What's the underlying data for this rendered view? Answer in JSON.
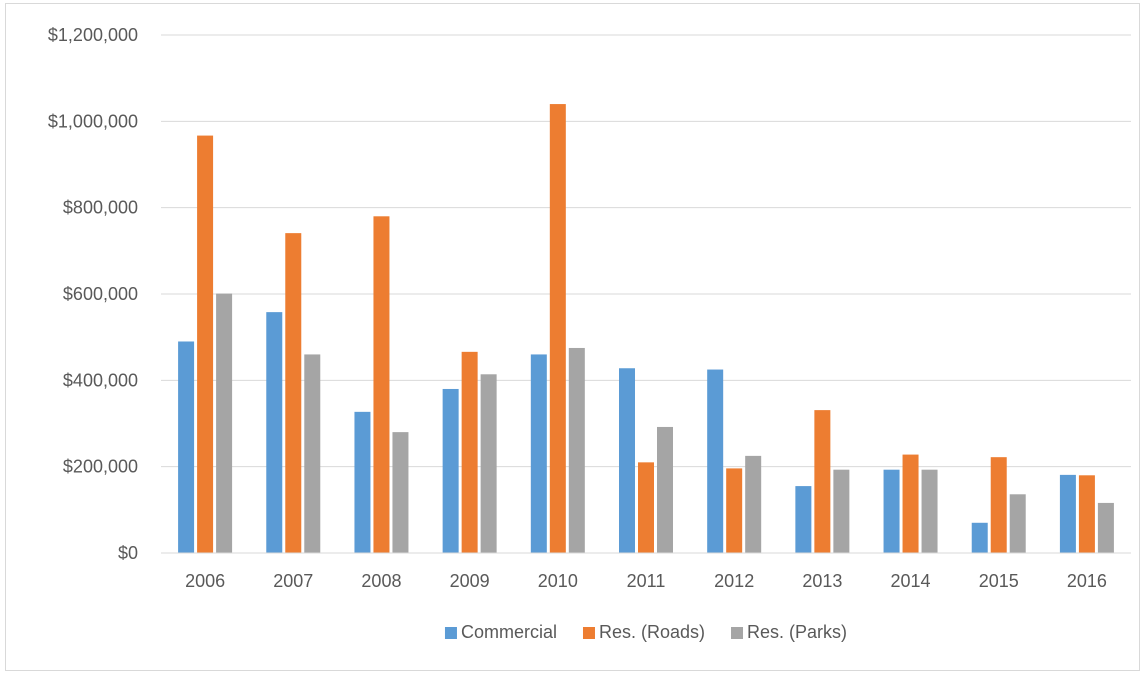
{
  "chart_data": {
    "type": "bar",
    "categories": [
      "2006",
      "2007",
      "2008",
      "2009",
      "2010",
      "2011",
      "2012",
      "2013",
      "2014",
      "2015",
      "2016"
    ],
    "series": [
      {
        "name": "Commercial",
        "color": "#5b9bd5",
        "values": [
          490000,
          558000,
          327000,
          380000,
          460000,
          428000,
          425000,
          155000,
          193000,
          70000,
          181000
        ]
      },
      {
        "name": "Res. (Roads)",
        "color": "#ed7d31",
        "values": [
          967000,
          741000,
          780000,
          466000,
          1040000,
          210000,
          196000,
          331000,
          228000,
          222000,
          180000
        ]
      },
      {
        "name": "Res. (Parks)",
        "color": "#a5a5a5",
        "values": [
          601000,
          460000,
          280000,
          414000,
          475000,
          292000,
          225000,
          193000,
          193000,
          136000,
          116000
        ]
      }
    ],
    "ylim": [
      0,
      1200000
    ],
    "yticks": [
      0,
      200000,
      400000,
      600000,
      800000,
      1000000,
      1200000
    ],
    "ytick_labels": [
      "$0",
      "$200,000",
      "$400,000",
      "$600,000",
      "$800,000",
      "$1,000,000",
      "$1,200,000"
    ],
    "grid": true,
    "legend_position": "bottom"
  }
}
